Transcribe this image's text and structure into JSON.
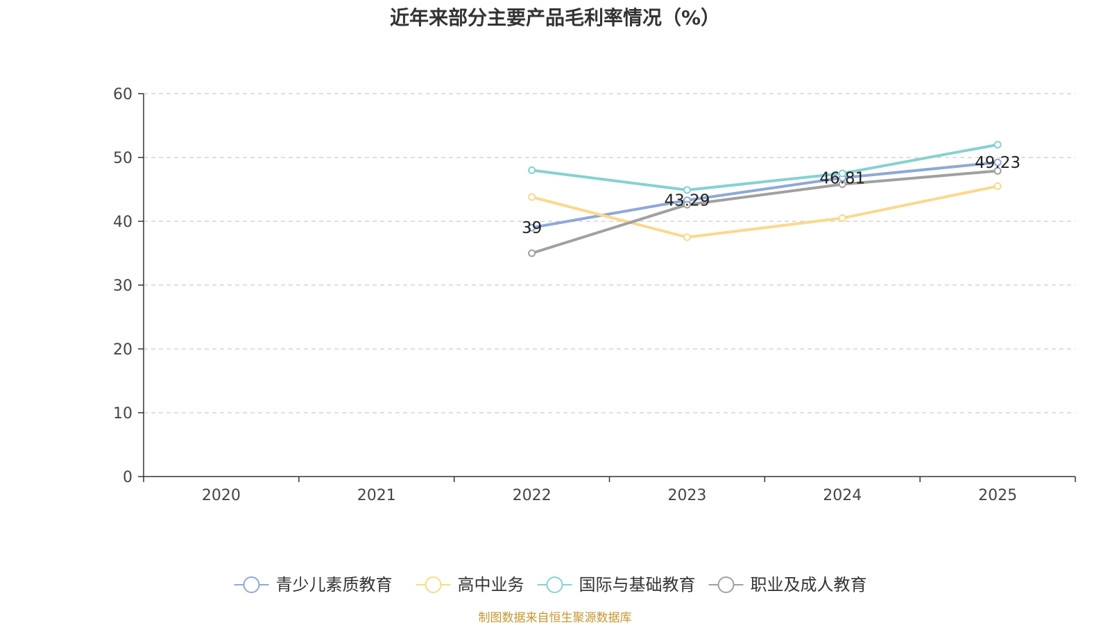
{
  "chart_data": {
    "type": "line",
    "title": "近年来部分主要产品毛利率情况（%）",
    "source": "制图数据来自恒生聚源数据库",
    "xlabel": "",
    "ylabel": "",
    "ylim": [
      0,
      60
    ],
    "yticks": [
      0,
      10,
      20,
      30,
      40,
      50,
      60
    ],
    "grid": true,
    "legend_position": "bottom",
    "categories": [
      "2020",
      "2021",
      "2022",
      "2023",
      "2024",
      "2025"
    ],
    "series": [
      {
        "name": "青少儿素质教育",
        "color": "#8ea8d9",
        "values": [
          null,
          null,
          39,
          43.29,
          46.81,
          49.23
        ],
        "show_labels": true
      },
      {
        "name": "高中业务",
        "color": "#fbd88c",
        "values": [
          null,
          null,
          43.8,
          37.5,
          40.5,
          45.5
        ],
        "show_labels": false
      },
      {
        "name": "国际与基础教育",
        "color": "#86d1d1",
        "values": [
          null,
          null,
          48,
          44.9,
          47.5,
          52
        ],
        "show_labels": false
      },
      {
        "name": "职业及成人教育",
        "color": "#a0a0a0",
        "values": [
          null,
          null,
          35,
          42.6,
          45.8,
          47.9
        ],
        "show_labels": false
      }
    ]
  }
}
